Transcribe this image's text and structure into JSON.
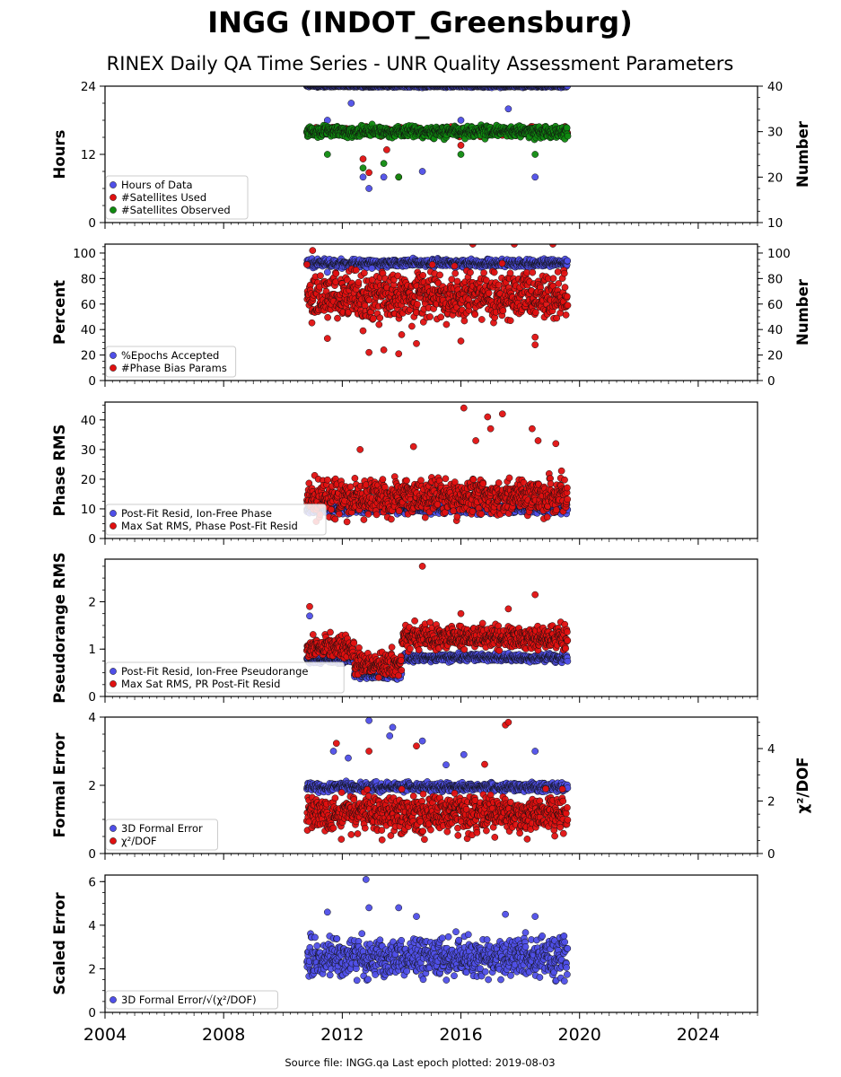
{
  "title": "INGG (INDOT_Greensburg)",
  "subtitle": "RINEX Daily QA Time Series - UNR Quality Assessment Parameters",
  "footer": "Source file: INGG.qa Last epoch plotted: 2019-08-03",
  "colors": {
    "blue": "#4f4fe8",
    "red": "#e01010",
    "green": "#0f8a0f",
    "edge": "#111111"
  },
  "x_axis": {
    "ticks": [
      2004,
      2008,
      2012,
      2016,
      2020,
      2024
    ],
    "range": [
      2004,
      2026
    ]
  },
  "chart_data": [
    {
      "type": "scatter",
      "ylabel": "Hours",
      "y2label": "Number",
      "ylim": [
        0,
        24
      ],
      "yticks": [
        0,
        12,
        24
      ],
      "y2lim": [
        10,
        40
      ],
      "y2ticks": [
        10,
        20,
        30,
        40
      ],
      "legend": "lower-left",
      "series": [
        {
          "name": "Hours of Data",
          "color": "blue",
          "axis": "left",
          "x_range": [
            2010.8,
            2019.6
          ],
          "baseline": 24,
          "spread": 0.1,
          "outliers": [
            [
              2011.5,
              18
            ],
            [
              2012.3,
              21
            ],
            [
              2012.7,
              8
            ],
            [
              2012.9,
              6
            ],
            [
              2013.4,
              8
            ],
            [
              2014.7,
              9
            ],
            [
              2016.0,
              18
            ],
            [
              2017.6,
              20
            ],
            [
              2018.5,
              8
            ]
          ]
        },
        {
          "name": "#Satellites Used",
          "color": "red",
          "axis": "right",
          "x_range": [
            2010.8,
            2019.6
          ],
          "baseline": 30,
          "spread": 0.4,
          "outliers": [
            [
              2012.7,
              24
            ],
            [
              2012.9,
              21
            ],
            [
              2013.5,
              26
            ],
            [
              2013.9,
              20
            ],
            [
              2016.0,
              27
            ]
          ]
        },
        {
          "name": "#Satellites Observed",
          "color": "green",
          "axis": "right",
          "x_range": [
            2010.8,
            2019.6
          ],
          "baseline": 30,
          "spread": 0.6,
          "outliers": [
            [
              2011.5,
              25
            ],
            [
              2012.7,
              22
            ],
            [
              2013.4,
              23
            ],
            [
              2013.9,
              20
            ],
            [
              2016.0,
              25
            ],
            [
              2018.5,
              25
            ]
          ]
        }
      ]
    },
    {
      "type": "scatter",
      "ylabel": "Percent",
      "y2label": "Number",
      "ylim": [
        0,
        107
      ],
      "yticks": [
        0,
        20,
        40,
        60,
        80,
        100
      ],
      "y2lim": [
        0,
        107
      ],
      "y2ticks": [
        0,
        20,
        40,
        60,
        80,
        100
      ],
      "legend": "lower-left",
      "series": [
        {
          "name": "%Epochs Accepted",
          "color": "blue",
          "axis": "left",
          "x_range": [
            2010.8,
            2019.6
          ],
          "baseline": 92,
          "spread": 1.5,
          "outliers": [
            [
              2011.5,
              85
            ],
            [
              2013.0,
              88
            ],
            [
              2016.2,
              86
            ]
          ]
        },
        {
          "name": "#Phase Bias Params",
          "color": "red",
          "axis": "right",
          "x_range": [
            2010.8,
            2019.6
          ],
          "baseline": 66,
          "spread": 9,
          "outliers": [
            [
              2011.0,
              102
            ],
            [
              2011.5,
              33
            ],
            [
              2012.7,
              39
            ],
            [
              2012.9,
              22
            ],
            [
              2013.4,
              24
            ],
            [
              2013.9,
              21
            ],
            [
              2014.0,
              36
            ],
            [
              2014.5,
              29
            ],
            [
              2016.0,
              31
            ],
            [
              2016.4,
              107
            ],
            [
              2017.8,
              107
            ],
            [
              2018.5,
              28
            ],
            [
              2018.5,
              34
            ],
            [
              2019.1,
              107
            ]
          ]
        }
      ]
    },
    {
      "type": "scatter",
      "ylabel": "Phase RMS",
      "ylim": [
        0,
        46
      ],
      "yticks": [
        0,
        10,
        20,
        30,
        40
      ],
      "legend": "lower-left",
      "series": [
        {
          "name": "Post-Fit Resid, Ion-Free Phase",
          "color": "blue",
          "axis": "left",
          "x_range": [
            2010.8,
            2019.6
          ],
          "baseline": 10,
          "spread": 0.7,
          "outliers": []
        },
        {
          "name": "Max Sat RMS, Phase Post-Fit Resid",
          "color": "red",
          "axis": "left",
          "x_range": [
            2010.8,
            2019.6
          ],
          "baseline": 14,
          "spread": 3,
          "outliers": [
            [
              2016.1,
              44
            ],
            [
              2016.9,
              41
            ],
            [
              2017.4,
              42
            ],
            [
              2017.0,
              37
            ],
            [
              2018.4,
              37
            ],
            [
              2018.6,
              33
            ],
            [
              2016.5,
              33
            ],
            [
              2014.4,
              31
            ],
            [
              2019.2,
              32
            ],
            [
              2012.6,
              30
            ]
          ]
        }
      ]
    },
    {
      "type": "scatter",
      "ylabel": "Pseudorange RMS",
      "ylim": [
        0,
        2.9
      ],
      "yticks": [
        0,
        1,
        2
      ],
      "legend": "lower-left",
      "series": [
        {
          "name": "Post-Fit Resid, Ion-Free Pseudorange",
          "color": "blue",
          "axis": "left",
          "segments": [
            [
              2010.8,
              2012.4,
              0.78
            ],
            [
              2012.4,
              2014.0,
              0.45
            ],
            [
              2014.0,
              2019.6,
              0.82
            ]
          ],
          "spread": 0.04,
          "outliers": [
            [
              2010.9,
              1.7
            ]
          ]
        },
        {
          "name": "Max Sat RMS, PR Post-Fit Resid",
          "color": "red",
          "axis": "left",
          "segments": [
            [
              2010.8,
              2012.4,
              1.05
            ],
            [
              2012.4,
              2014.0,
              0.68
            ],
            [
              2014.0,
              2019.6,
              1.25
            ]
          ],
          "spread": 0.12,
          "outliers": [
            [
              2014.7,
              2.75
            ],
            [
              2018.5,
              2.15
            ],
            [
              2010.9,
              1.9
            ],
            [
              2016.0,
              1.75
            ],
            [
              2017.6,
              1.85
            ]
          ]
        }
      ]
    },
    {
      "type": "scatter",
      "ylabel": "Formal Error",
      "y2label": "χ²/DOF",
      "ylim": [
        0,
        4
      ],
      "yticks": [
        0,
        2,
        4
      ],
      "y2lim": [
        0,
        5.2
      ],
      "y2ticks": [
        0,
        2,
        4
      ],
      "legend": "lower-left",
      "series": [
        {
          "name": "3D Formal Error",
          "color": "blue",
          "axis": "left",
          "x_range": [
            2010.8,
            2019.6
          ],
          "baseline": 1.95,
          "spread": 0.06,
          "outliers": [
            [
              2012.9,
              3.9
            ],
            [
              2013.7,
              3.7
            ],
            [
              2013.6,
              3.45
            ],
            [
              2011.7,
              3.0
            ],
            [
              2014.7,
              3.3
            ],
            [
              2018.5,
              3.0
            ],
            [
              2016.1,
              2.9
            ],
            [
              2012.2,
              2.8
            ],
            [
              2015.5,
              2.6
            ]
          ]
        },
        {
          "name": "χ²/DOF",
          "color": "red",
          "axis": "right",
          "x_range": [
            2010.8,
            2019.6
          ],
          "baseline": 1.5,
          "spread": 0.35,
          "outliers": [
            [
              2017.5,
              4.9
            ],
            [
              2017.6,
              5.0
            ],
            [
              2011.8,
              4.2
            ],
            [
              2012.9,
              3.9
            ],
            [
              2016.8,
              3.4
            ],
            [
              2014.5,
              4.1
            ]
          ]
        }
      ]
    },
    {
      "type": "scatter",
      "ylabel": "Scaled Error",
      "ylim": [
        0,
        6.3
      ],
      "yticks": [
        0,
        2,
        4,
        6
      ],
      "legend": "lower-left",
      "series": [
        {
          "name": "3D Formal Error/√(χ²/DOF)",
          "color": "blue",
          "axis": "left",
          "x_range": [
            2010.8,
            2019.6
          ],
          "baseline": 2.5,
          "spread": 0.45,
          "outliers": [
            [
              2012.8,
              6.1
            ],
            [
              2012.9,
              4.8
            ],
            [
              2013.9,
              4.8
            ],
            [
              2011.5,
              4.6
            ],
            [
              2014.5,
              4.4
            ],
            [
              2017.5,
              4.5
            ],
            [
              2018.5,
              4.4
            ]
          ]
        }
      ]
    }
  ]
}
